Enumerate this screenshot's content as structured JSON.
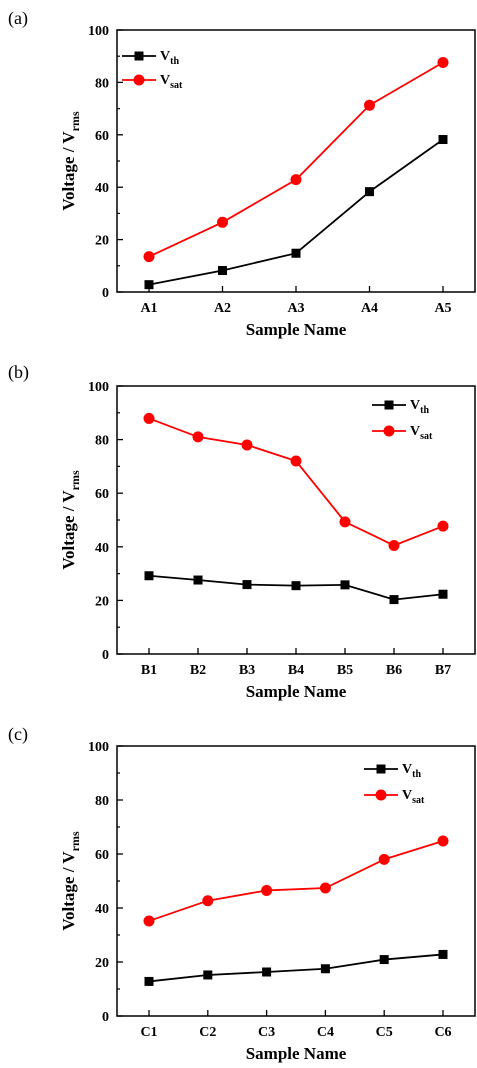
{
  "colors": {
    "vth": "#000000",
    "vsat": "#ff0000"
  },
  "chart_data": [
    {
      "panel": "(a)",
      "type": "line",
      "categories": [
        "A1",
        "A2",
        "A3",
        "A4",
        "A5"
      ],
      "xlabel": "Sample Name",
      "ylabel_main": "Voltage / V",
      "ylabel_sub": "rms",
      "ylim": [
        0,
        100
      ],
      "yticks": [
        "0",
        "20",
        "40",
        "60",
        "80",
        "100"
      ],
      "legend_position": "top-left",
      "series": [
        {
          "name_main": "V",
          "name_sub": "th",
          "marker": "square",
          "values": [
            2.8,
            8.2,
            14.8,
            38.3,
            58.2
          ]
        },
        {
          "name_main": "V",
          "name_sub": "sat",
          "marker": "circle",
          "values": [
            13.5,
            26.6,
            42.9,
            71.3,
            87.6
          ]
        }
      ]
    },
    {
      "panel": "(b)",
      "type": "line",
      "categories": [
        "B1",
        "B2",
        "B3",
        "B4",
        "B5",
        "B6",
        "B7"
      ],
      "xlabel": "Sample Name",
      "ylabel_main": "Voltage / V",
      "ylabel_sub": "rms",
      "ylim": [
        0,
        100
      ],
      "yticks": [
        "0",
        "20",
        "40",
        "60",
        "80",
        "100"
      ],
      "legend_position": "top-right",
      "series": [
        {
          "name_main": "V",
          "name_sub": "th",
          "marker": "square",
          "values": [
            29.2,
            27.6,
            25.9,
            25.5,
            25.8,
            20.3,
            22.3
          ]
        },
        {
          "name_main": "V",
          "name_sub": "sat",
          "marker": "circle",
          "values": [
            87.9,
            81.0,
            78.0,
            72.0,
            49.3,
            40.5,
            47.7
          ]
        }
      ]
    },
    {
      "panel": "(c)",
      "type": "line",
      "categories": [
        "C1",
        "C2",
        "C3",
        "C4",
        "C5",
        "C6"
      ],
      "xlabel": "Sample Name",
      "ylabel_main": "Voltage / V",
      "ylabel_sub": "rms",
      "ylim": [
        0,
        100
      ],
      "yticks": [
        "0",
        "20",
        "40",
        "60",
        "80",
        "100"
      ],
      "legend_position": "top-right",
      "series": [
        {
          "name_main": "V",
          "name_sub": "th",
          "marker": "square",
          "values": [
            12.8,
            15.2,
            16.3,
            17.5,
            20.9,
            22.8
          ]
        },
        {
          "name_main": "V",
          "name_sub": "sat",
          "marker": "circle",
          "values": [
            35.2,
            42.7,
            46.5,
            47.4,
            58.0,
            64.8
          ]
        }
      ]
    }
  ]
}
